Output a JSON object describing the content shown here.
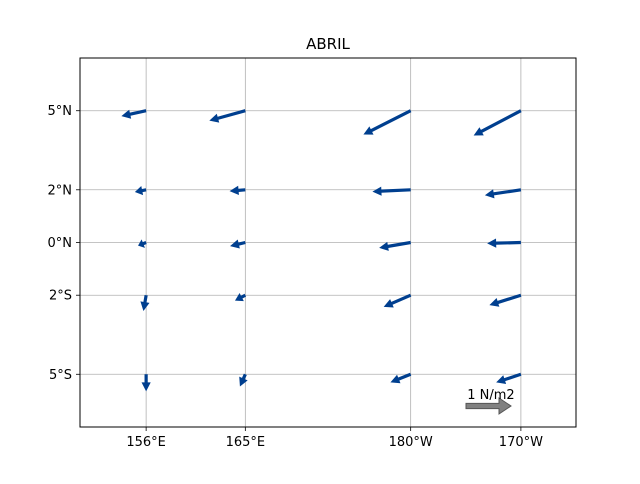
{
  "chart_data": {
    "type": "quiver",
    "title": "ABRIL",
    "xlabel": "",
    "ylabel": "",
    "x_ticks": [
      {
        "lon": 156,
        "label": "156°E"
      },
      {
        "lon": 165,
        "label": "165°E"
      },
      {
        "lon": 180,
        "label": "180°W"
      },
      {
        "lon": 190,
        "label": "170°W"
      }
    ],
    "y_ticks": [
      {
        "lat": 5,
        "label": "5°N"
      },
      {
        "lat": 2,
        "label": "2°N"
      },
      {
        "lat": 0,
        "label": "0°N"
      },
      {
        "lat": -2,
        "label": "2°S"
      },
      {
        "lat": -5,
        "label": "5°S"
      }
    ],
    "xlim": [
      150,
      195
    ],
    "ylim": [
      -7,
      7
    ],
    "grid": true,
    "vector_color": "#003f8f",
    "key": {
      "label": "1 N/m2",
      "magnitude": 1,
      "color": "#808080"
    },
    "vectors": [
      {
        "lon": 156,
        "lat": 5,
        "u": -0.55,
        "v": -0.12
      },
      {
        "lon": 165,
        "lat": 5,
        "u": -0.8,
        "v": -0.22
      },
      {
        "lon": 180,
        "lat": 5,
        "u": -1.05,
        "v": -0.53
      },
      {
        "lon": 190,
        "lat": 5,
        "u": -1.05,
        "v": -0.55
      },
      {
        "lon": 156,
        "lat": 2,
        "u": -0.25,
        "v": -0.05
      },
      {
        "lon": 165,
        "lat": 2,
        "u": -0.35,
        "v": -0.03
      },
      {
        "lon": 180,
        "lat": 2,
        "u": -0.85,
        "v": -0.04
      },
      {
        "lon": 190,
        "lat": 2,
        "u": -0.8,
        "v": -0.12
      },
      {
        "lon": 156,
        "lat": 0,
        "u": -0.18,
        "v": -0.07
      },
      {
        "lon": 165,
        "lat": 0,
        "u": -0.34,
        "v": -0.08
      },
      {
        "lon": 180,
        "lat": 0,
        "u": -0.7,
        "v": -0.12
      },
      {
        "lon": 190,
        "lat": 0,
        "u": -0.75,
        "v": -0.02
      },
      {
        "lon": 156,
        "lat": -2,
        "u": -0.06,
        "v": -0.35
      },
      {
        "lon": 165,
        "lat": -2,
        "u": -0.23,
        "v": -0.12
      },
      {
        "lon": 180,
        "lat": -2,
        "u": -0.6,
        "v": -0.26
      },
      {
        "lon": 190,
        "lat": -2,
        "u": -0.7,
        "v": -0.22
      },
      {
        "lon": 156,
        "lat": -5,
        "u": 0.0,
        "v": -0.38
      },
      {
        "lon": 165,
        "lat": -5,
        "u": -0.12,
        "v": -0.27
      },
      {
        "lon": 180,
        "lat": -5,
        "u": -0.45,
        "v": -0.18
      },
      {
        "lon": 190,
        "lat": -5,
        "u": -0.55,
        "v": -0.18
      }
    ]
  }
}
